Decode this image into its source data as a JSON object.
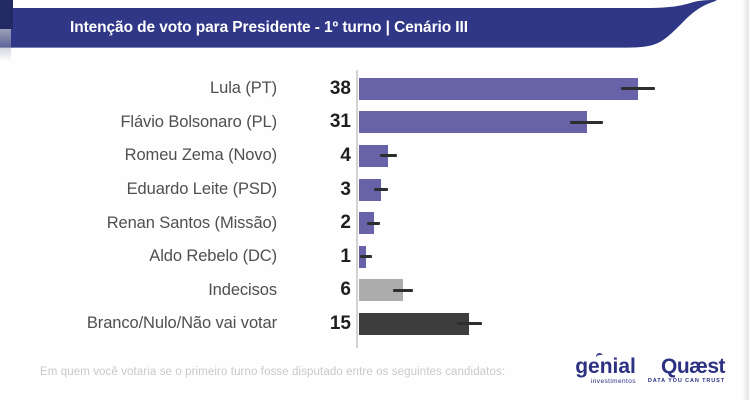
{
  "header": {
    "title": "Intenção de voto para Presidente - 1º turno | Cenário III"
  },
  "chart_data": {
    "type": "bar",
    "orientation": "horizontal",
    "title": "Intenção de voto para Presidente - 1º turno | Cenário III",
    "categories": [
      "Lula (PT)",
      "Flávio Bolsonaro (PL)",
      "Romeu Zema (Novo)",
      "Eduardo Leite (PSD)",
      "Renan Santos (Missão)",
      "Aldo Rebelo (DC)",
      "Indecisos",
      "Branco/Nulo/Não vai votar"
    ],
    "values": [
      38,
      31,
      4,
      3,
      2,
      1,
      6,
      15
    ],
    "errors": [
      2.3,
      2.3,
      1.2,
      1.0,
      0.9,
      0.8,
      1.4,
      1.7
    ],
    "bar_colors": [
      "#6862a8",
      "#6862a8",
      "#6862a8",
      "#6862a8",
      "#6862a8",
      "#6862a8",
      "#acacac",
      "#3d3d3d"
    ],
    "value_label_position": "left-of-axis",
    "xlim": [
      0,
      41
    ],
    "grid": false,
    "legend": false
  },
  "footer": {
    "question": "Em quem você votaria se o primeiro turno fosse disputado entre os seguintes candidatos:"
  },
  "logos": {
    "genial": {
      "name": "genial",
      "sub": "investimentos"
    },
    "quaest": {
      "name": "Quæst",
      "sub": "DATA YOU CAN TRUST"
    }
  },
  "theme": {
    "banner_color": "#2f3786",
    "banner_text_color": "#ffffff",
    "axis_color": "#d3d3d3",
    "error_bar_color": "#2e2e2e",
    "category_label_color": "#4f4f4f",
    "value_label_color": "#1f1f1f",
    "footer_text_color": "#c9c9c9",
    "logo_color": "#2c3182"
  }
}
